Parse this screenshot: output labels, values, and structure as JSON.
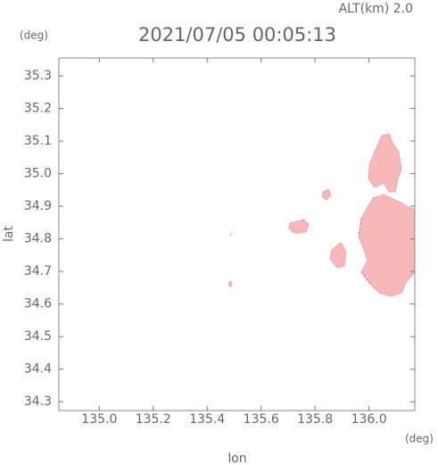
{
  "chart_data": {
    "type": "map",
    "title": "2021/07/05 00:05:13",
    "subtitle": "ALT(km) 2.0",
    "x_label": "lon",
    "y_label": "lat",
    "x_unit": "(deg)",
    "y_unit": "(deg)",
    "xlim": [
      134.85,
      136.17
    ],
    "ylim": [
      34.273,
      35.355
    ],
    "xticks": [
      {
        "value": 135.0,
        "label": "135.0"
      },
      135.2,
      135.4,
      135.6,
      135.8,
      {
        "value": 136.0,
        "label": "136.0"
      }
    ],
    "yticks": [
      34.3,
      34.4,
      34.5,
      34.6,
      34.7,
      34.8,
      34.9,
      {
        "value": 35.0,
        "label": "35.0"
      },
      35.1,
      35.2,
      35.3
    ]
  }
}
